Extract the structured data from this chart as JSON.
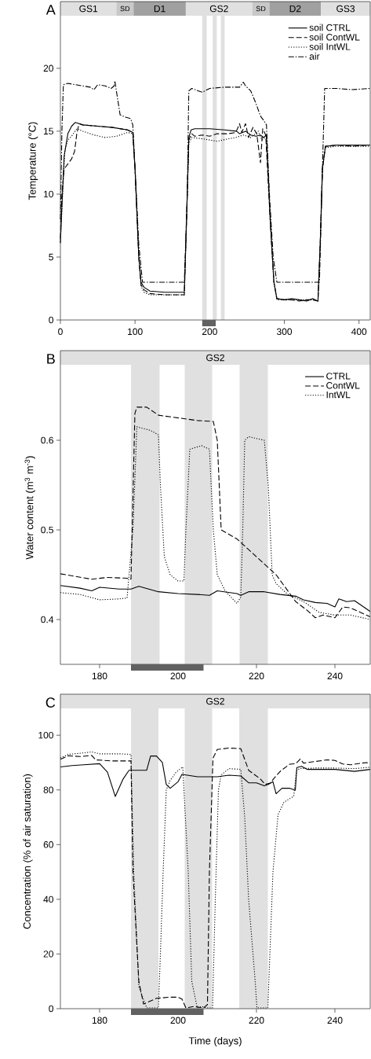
{
  "chart_data": [
    {
      "type": "line",
      "title": "A",
      "ylabel": "Temperature (°C)",
      "xlim": [
        0,
        415
      ],
      "ylim": [
        0,
        25.3
      ],
      "xticks": [
        0,
        100,
        200,
        300,
        400
      ],
      "yticks": [
        0,
        5,
        10,
        15,
        20
      ],
      "legend": "top right",
      "marker": "none",
      "bands": [
        {
          "axis": "x",
          "from": 0,
          "to": 75,
          "label": "GS1",
          "color": "#e0e0e0"
        },
        {
          "axis": "x",
          "from": 75,
          "to": 98,
          "label": "SD",
          "color": "#c8c8c8"
        },
        {
          "axis": "x",
          "from": 98,
          "to": 168,
          "label": "D1",
          "color": "#a0a0a0"
        },
        {
          "axis": "x",
          "from": 168,
          "to": 257,
          "label": "GS2",
          "color": "#e0e0e0"
        },
        {
          "axis": "x",
          "from": 257,
          "to": 280,
          "label": "SD",
          "color": "#c8c8c8"
        },
        {
          "axis": "x",
          "from": 280,
          "to": 349,
          "label": "D2",
          "color": "#a0a0a0"
        },
        {
          "axis": "x",
          "from": 349,
          "to": 415,
          "label": "GS3",
          "color": "#e0e0e0"
        },
        {
          "axis": "x",
          "from": 190,
          "to": 196,
          "color": "#e0e0e0"
        },
        {
          "axis": "x",
          "from": 204,
          "to": 209.5,
          "color": "#e0e0e0"
        },
        {
          "axis": "x",
          "from": 215,
          "to": 220,
          "color": "#e0e0e0"
        }
      ],
      "series": [
        {
          "name": "soil CTRL",
          "color": "#000000",
          "line_style": "solid",
          "x": [
            0,
            2,
            5,
            10,
            15,
            20,
            25,
            30,
            50,
            70,
            90,
            97,
            100,
            105,
            108,
            112,
            120,
            140,
            160,
            166,
            169,
            172,
            175,
            180,
            200,
            220,
            236,
            240,
            248,
            255,
            262,
            268,
            272,
            276,
            281,
            286,
            290,
            300,
            310,
            320,
            330,
            338,
            345,
            348,
            351,
            355,
            370,
            390,
            415
          ],
          "values": [
            6.1,
            9,
            13,
            14.8,
            15.4,
            15.7,
            15.6,
            15.5,
            15.4,
            15.3,
            15.1,
            14.9,
            12,
            5,
            3,
            2.6,
            2.3,
            2.2,
            2.2,
            2.2,
            8,
            14.5,
            15.1,
            15.2,
            15.2,
            15.1,
            15.0,
            14.8,
            15.0,
            14.7,
            14.6,
            14.7,
            14.5,
            14.7,
            8,
            3,
            1.7,
            1.6,
            1.7,
            1.6,
            1.5,
            1.7,
            1.5,
            6,
            12,
            13.8,
            13.9,
            13.9,
            13.9
          ]
        },
        {
          "name": "soil ContWL",
          "color": "#000000",
          "line_style": "dashed",
          "x": [
            0,
            2,
            5,
            10,
            15,
            19,
            22,
            25,
            30,
            50,
            70,
            90,
            97,
            100,
            105,
            108,
            112,
            120,
            140,
            160,
            166,
            169,
            172,
            176,
            180,
            190,
            200,
            210,
            225,
            235,
            240,
            243,
            248,
            252,
            258,
            263,
            268,
            271,
            275,
            281,
            286,
            290,
            300,
            310,
            320,
            330,
            338,
            345,
            348,
            351,
            355,
            370,
            390,
            415
          ],
          "values": [
            6.5,
            10,
            12.0,
            12.4,
            12.8,
            13.4,
            14.8,
            15.6,
            15.5,
            15.4,
            15.3,
            15.1,
            14.9,
            12,
            5,
            2.8,
            2.4,
            2.1,
            2.0,
            2.0,
            2.0,
            8,
            14.3,
            14.8,
            14.6,
            14.7,
            14.6,
            14.8,
            14.8,
            14.9,
            15.6,
            14.9,
            15.6,
            14.5,
            15.3,
            14.8,
            12.5,
            15.2,
            14.7,
            8,
            3,
            1.7,
            1.6,
            1.6,
            1.5,
            1.6,
            1.6,
            1.5,
            6,
            12,
            13.8,
            13.9,
            13.8,
            13.9
          ]
        },
        {
          "name": "soil IntWL",
          "color": "#000000",
          "line_style": "dotted",
          "x": [
            0,
            3,
            6,
            10,
            15,
            22,
            30,
            45,
            60,
            75,
            90,
            97,
            100,
            105,
            108,
            112,
            120,
            140,
            160,
            166,
            169,
            172,
            176,
            190,
            200,
            210,
            225,
            235,
            245,
            255,
            265,
            270,
            276,
            281,
            286,
            290,
            300,
            320,
            338,
            345,
            348,
            351,
            355,
            370,
            390,
            415
          ],
          "values": [
            6.2,
            10,
            13.5,
            14.3,
            14.6,
            15.2,
            15.0,
            14.7,
            14.5,
            14.6,
            14.9,
            14.8,
            12,
            5,
            2.7,
            2.2,
            2.0,
            2.0,
            2.0,
            2.0,
            8,
            14.0,
            14.5,
            14.4,
            14.3,
            14.2,
            14.4,
            14.5,
            14.7,
            14.5,
            15.0,
            14.3,
            14.6,
            8,
            3,
            1.6,
            1.6,
            1.6,
            1.6,
            1.5,
            6,
            12,
            13.7,
            13.8,
            13.8,
            13.8
          ]
        },
        {
          "name": "air",
          "color": "#000000",
          "line_style": "dashdot",
          "x": [
            0,
            2,
            4,
            10,
            20,
            30,
            40,
            45,
            50,
            60,
            68,
            72,
            73,
            75,
            80,
            88,
            94,
            97,
            100,
            105,
            110,
            120,
            140,
            160,
            166,
            170,
            172,
            176,
            185,
            190,
            200,
            220,
            240,
            245,
            248,
            255,
            262,
            268,
            273,
            276,
            280,
            285,
            290,
            300,
            320,
            340,
            347,
            351,
            354,
            370,
            390,
            415
          ],
          "values": [
            8,
            15,
            18.7,
            18.8,
            18.7,
            18.6,
            18.5,
            18.3,
            18.7,
            18.6,
            18.4,
            18.6,
            19.0,
            18.2,
            16.3,
            16.1,
            16.0,
            15.5,
            12,
            6,
            3.0,
            3.0,
            3.0,
            3.0,
            3.0,
            10,
            18.2,
            18.4,
            18.2,
            18.1,
            18.4,
            18.5,
            18.5,
            18.9,
            18.6,
            18.2,
            17.2,
            16.2,
            15.8,
            15.5,
            10,
            5,
            3.0,
            3.0,
            3.0,
            3.0,
            3.0,
            12,
            18.4,
            18.4,
            18.3,
            18.4
          ]
        }
      ]
    },
    {
      "type": "line",
      "title": "B",
      "ylabel": "Water content (m$^{3}$ m$^{-3}$)",
      "xlim": [
        170,
        249
      ],
      "ylim": [
        0.35,
        0.7
      ],
      "xticks": [
        180,
        200,
        220,
        240
      ],
      "yticks": [
        0.4,
        0.5,
        0.6
      ],
      "legend": "top right",
      "marker": "none",
      "bands": [
        {
          "axis": "x",
          "from": 170,
          "to": 249,
          "label": "GS2",
          "color": "#e0e0e0"
        },
        {
          "axis": "x",
          "from": 188,
          "to": 195.3,
          "color": "#e0e0e0"
        },
        {
          "axis": "x",
          "from": 201.7,
          "to": 208.7,
          "color": "#e0e0e0"
        },
        {
          "axis": "x",
          "from": 215.7,
          "to": 222.9,
          "color": "#e0e0e0"
        }
      ],
      "series": [
        {
          "name": "CTRL",
          "color": "#000000",
          "line_style": "solid",
          "x": [
            170,
            175,
            178,
            180,
            185,
            188,
            190,
            195,
            200,
            205,
            208,
            210,
            215,
            216,
            218,
            222,
            226,
            230,
            232,
            235,
            238,
            240,
            241,
            243,
            245,
            249
          ],
          "values": [
            0.438,
            0.435,
            0.432,
            0.436,
            0.434,
            0.434,
            0.437,
            0.431,
            0.429,
            0.428,
            0.427,
            0.432,
            0.429,
            0.427,
            0.431,
            0.431,
            0.428,
            0.426,
            0.422,
            0.419,
            0.418,
            0.414,
            0.423,
            0.42,
            0.421,
            0.409
          ]
        },
        {
          "name": "ContWL",
          "color": "#000000",
          "line_style": "dashed",
          "x": [
            170,
            178,
            182,
            187,
            188,
            189,
            189.5,
            192,
            195,
            200,
            205,
            209,
            210,
            211,
            215,
            220,
            225,
            230,
            233,
            235,
            237,
            240,
            242,
            244,
            249
          ],
          "values": [
            0.451,
            0.445,
            0.447,
            0.446,
            0.445,
            0.63,
            0.637,
            0.637,
            0.628,
            0.625,
            0.622,
            0.621,
            0.6,
            0.5,
            0.49,
            0.47,
            0.45,
            0.42,
            0.41,
            0.402,
            0.405,
            0.402,
            0.414,
            0.413,
            0.403
          ]
        },
        {
          "name": "IntWL",
          "color": "#000000",
          "line_style": "dotted",
          "x": [
            170,
            175,
            180,
            185,
            187,
            188.5,
            189.5,
            193,
            195,
            195.5,
            196.5,
            198,
            200,
            201.5,
            202,
            203,
            206,
            208,
            209,
            210,
            212,
            215,
            216,
            216.5,
            217,
            218,
            222,
            223,
            224,
            225,
            228,
            232,
            236,
            240,
            244,
            249
          ],
          "values": [
            0.43,
            0.428,
            0.422,
            0.423,
            0.424,
            0.5,
            0.615,
            0.611,
            0.606,
            0.55,
            0.47,
            0.45,
            0.443,
            0.443,
            0.5,
            0.59,
            0.594,
            0.59,
            0.5,
            0.45,
            0.432,
            0.418,
            0.425,
            0.5,
            0.6,
            0.604,
            0.6,
            0.55,
            0.45,
            0.44,
            0.428,
            0.42,
            0.408,
            0.405,
            0.405,
            0.4
          ]
        }
      ]
    },
    {
      "type": "line",
      "title": "C",
      "xlabel": "Time (days)",
      "ylabel": "Concentration (% of air saturation)",
      "xlim": [
        170,
        249
      ],
      "ylim": [
        0,
        115
      ],
      "xticks": [
        180,
        200,
        220,
        240
      ],
      "yticks": [
        0,
        20,
        40,
        60,
        80,
        100
      ],
      "legend": false,
      "marker": "none",
      "bands": [
        {
          "axis": "x",
          "from": 170,
          "to": 249,
          "label": "GS2",
          "color": "#e0e0e0"
        },
        {
          "axis": "x",
          "from": 188,
          "to": 195,
          "color": "#e0e0e0"
        },
        {
          "axis": "x",
          "from": 201.7,
          "to": 208.7,
          "color": "#e0e0e0"
        },
        {
          "axis": "x",
          "from": 215.6,
          "to": 222.9,
          "color": "#e0e0e0"
        }
      ],
      "series": [
        {
          "color": "#000000",
          "line_style": "solid",
          "x": [
            170,
            173,
            176,
            180,
            182,
            184,
            186,
            187.5,
            190,
            192,
            193,
            194.5,
            196,
            197,
            198,
            200,
            201,
            205,
            210,
            213,
            216,
            218,
            220,
            222,
            223,
            224.2,
            225,
            226.5,
            228.5,
            229.9,
            230.3,
            231.5,
            233,
            240,
            245,
            249
          ],
          "values": [
            88.4,
            88.9,
            89.2,
            89.6,
            86.5,
            77.6,
            84,
            87.2,
            87.2,
            87.2,
            92.4,
            92.4,
            90,
            82,
            80.6,
            83,
            85.7,
            84.8,
            84.8,
            85.4,
            85.1,
            82.6,
            82.6,
            81.5,
            82,
            83,
            78.6,
            80.6,
            80.6,
            79.9,
            88.2,
            88.6,
            87.5,
            87.5,
            86.8,
            87.5
          ]
        },
        {
          "color": "#000000",
          "line_style": "dashed",
          "x": [
            170,
            172,
            175,
            178,
            179,
            183,
            188,
            188.5,
            190,
            191.2,
            192.5,
            194.5,
            198,
            200,
            201,
            202,
            204,
            206.5,
            207.5,
            208,
            208.9,
            210,
            213,
            216,
            218,
            221,
            222.2,
            223.5,
            224.5,
            226.2,
            228.5,
            230,
            231.2,
            232,
            235,
            238,
            240,
            242,
            244,
            248,
            249
          ],
          "values": [
            91.2,
            92.5,
            92.2,
            92.6,
            91,
            90.6,
            90.6,
            50,
            10,
            1.7,
            2.5,
            3.8,
            4.2,
            4.2,
            3.5,
            0.3,
            0.8,
            0.3,
            1.5,
            50,
            91.6,
            94.8,
            95.3,
            95.1,
            87.2,
            84,
            82,
            82.5,
            84.3,
            87,
            89.4,
            89.6,
            91.3,
            89.8,
            90.4,
            91,
            90.8,
            89.5,
            89.2,
            90,
            89.8
          ]
        },
        {
          "color": "#000000",
          "line_style": "dotted",
          "x": [
            170,
            172,
            175,
            178,
            180,
            185,
            188,
            188.7,
            190,
            192,
            195,
            195.5,
            196.2,
            197,
            198,
            199.5,
            201.2,
            202.6,
            203.5,
            204.9,
            206,
            207.5,
            208.8,
            209.5,
            210.3,
            211,
            213,
            216,
            217,
            218,
            219.7,
            220.1,
            222,
            222.9,
            224.2,
            225.5,
            227,
            229.5,
            230.2,
            231,
            235,
            240,
            245,
            249
          ],
          "values": [
            91.7,
            93,
            93.4,
            93.9,
            93.2,
            93.2,
            93,
            50,
            8,
            0.3,
            0.3,
            20,
            50,
            80,
            83.5,
            86.5,
            88.4,
            50,
            10,
            0.3,
            0.8,
            0.3,
            0.3,
            40,
            80,
            85.5,
            87.8,
            87.5,
            70,
            40,
            9.4,
            0.3,
            0.3,
            0.3,
            50,
            71,
            75.5,
            77.7,
            87,
            87.8,
            88,
            88,
            87.8,
            88.3
          ]
        }
      ]
    }
  ]
}
